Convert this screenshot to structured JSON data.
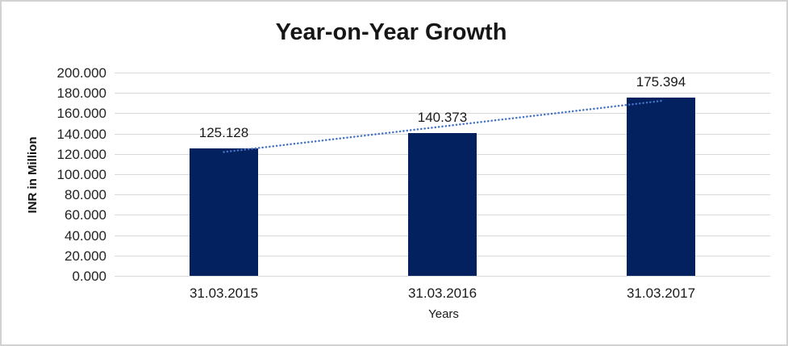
{
  "window": {
    "background_color": "#ffffff",
    "border_color": "#d2d2d2"
  },
  "chart_data": {
    "type": "bar",
    "title": "Year-on-Year Growth",
    "categories": [
      "31.03.2015",
      "31.03.2016",
      "31.03.2017"
    ],
    "values": [
      125.128,
      140.373,
      175.394
    ],
    "value_labels": [
      "125.128",
      "140.373",
      "175.394"
    ],
    "xlabel": "Years",
    "ylabel": "INR in Million",
    "ylim": [
      0,
      200
    ],
    "ytick_step": 20,
    "ytick_labels": [
      "0.000",
      "20.000",
      "40.000",
      "60.000",
      "80.000",
      "100.000",
      "120.000",
      "140.000",
      "160.000",
      "180.000",
      "200.000"
    ],
    "grid": true,
    "legend": "none",
    "bar_color": "#03215f",
    "gridline_color": "#d9d9d9",
    "label_color": "#1a1a1a",
    "trendline": {
      "type": "linear",
      "style": "dotted",
      "color": "#4472c4"
    }
  }
}
